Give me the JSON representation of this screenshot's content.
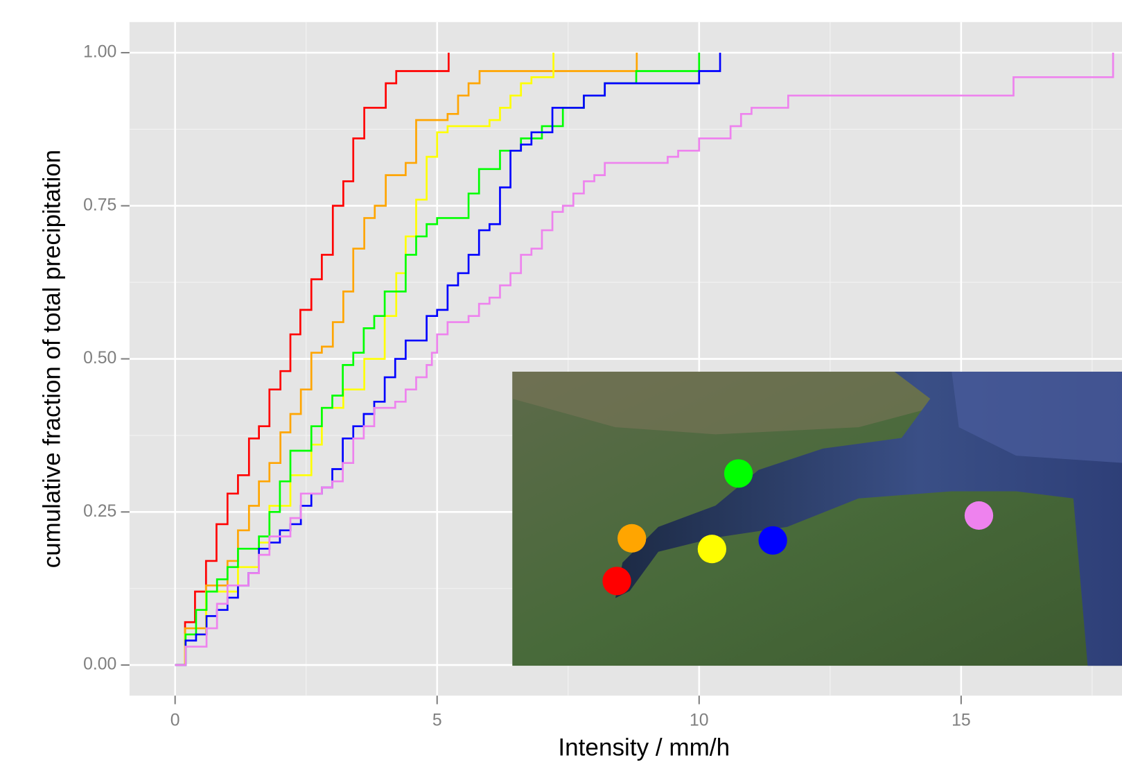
{
  "chart_data": {
    "type": "step",
    "x_label": "Intensity / mm/h",
    "y_label": "cumulative fraction of total precipitation",
    "xlim": [
      -0.87,
      18.07
    ],
    "ylim": [
      -0.05,
      1.05
    ],
    "xticks": [
      0,
      5,
      10,
      15
    ],
    "yticks": [
      {
        "value": 0,
        "label": "0.00"
      },
      0.25,
      {
        "value": 0.5,
        "label": "0.50"
      },
      0.75,
      {
        "value": 1,
        "label": "1.00"
      }
    ],
    "xminor": [
      2.5,
      7.5,
      12.5,
      17.5
    ],
    "yminor": [
      0.125,
      0.375,
      0.625,
      0.875
    ],
    "grid": true,
    "series": [
      {
        "color": "#ff0000",
        "x": [
          0,
          0.19,
          0.38,
          0.59,
          0.79,
          1.0,
          1.2,
          1.41,
          1.6,
          1.8,
          2.01,
          2.2,
          2.39,
          2.6,
          2.8,
          3.01,
          3.21,
          3.4,
          3.61,
          4.02,
          4.22,
          5.22
        ],
        "values": [
          0,
          0.07,
          0.12,
          0.17,
          0.23,
          0.28,
          0.31,
          0.37,
          0.39,
          0.45,
          0.48,
          0.54,
          0.58,
          0.63,
          0.67,
          0.75,
          0.79,
          0.86,
          0.91,
          0.95,
          0.97,
          1.0
        ]
      },
      {
        "color": "#ffa500",
        "x": [
          0,
          0.19,
          0.59,
          1.0,
          1.2,
          1.41,
          1.6,
          1.8,
          2.01,
          2.2,
          2.4,
          2.6,
          2.8,
          3.01,
          3.21,
          3.4,
          3.61,
          3.81,
          4.02,
          4.4,
          4.6,
          5.2,
          5.4,
          5.6,
          5.81,
          8.81
        ],
        "values": [
          0,
          0.06,
          0.13,
          0.17,
          0.22,
          0.26,
          0.3,
          0.33,
          0.38,
          0.41,
          0.45,
          0.51,
          0.52,
          0.56,
          0.61,
          0.68,
          0.73,
          0.75,
          0.8,
          0.82,
          0.89,
          0.9,
          0.93,
          0.95,
          0.97,
          1.0
        ]
      },
      {
        "color": "#ffff00",
        "x": [
          0,
          0.19,
          0.59,
          1.2,
          1.6,
          1.8,
          2.2,
          2.6,
          2.8,
          3.21,
          3.61,
          4.0,
          4.22,
          4.4,
          4.6,
          4.8,
          5.0,
          5.2,
          6.0,
          6.2,
          6.4,
          6.6,
          6.8,
          7.22
        ],
        "values": [
          0,
          0.05,
          0.12,
          0.16,
          0.2,
          0.26,
          0.31,
          0.36,
          0.42,
          0.45,
          0.5,
          0.57,
          0.64,
          0.7,
          0.76,
          0.83,
          0.87,
          0.88,
          0.89,
          0.91,
          0.93,
          0.95,
          0.96,
          1.0
        ]
      },
      {
        "color": "#00ff00",
        "x": [
          0,
          0.2,
          0.4,
          0.6,
          0.8,
          1.0,
          1.2,
          1.6,
          1.8,
          2.0,
          2.2,
          2.6,
          2.8,
          3.0,
          3.2,
          3.4,
          3.6,
          3.8,
          4.0,
          4.4,
          4.6,
          4.8,
          5.0,
          5.6,
          5.8,
          6.2,
          6.6,
          7.0,
          7.4,
          7.8,
          8.2,
          8.8,
          10.0
        ],
        "values": [
          0,
          0.05,
          0.09,
          0.12,
          0.14,
          0.16,
          0.19,
          0.21,
          0.25,
          0.3,
          0.35,
          0.39,
          0.42,
          0.44,
          0.49,
          0.51,
          0.55,
          0.57,
          0.61,
          0.67,
          0.7,
          0.72,
          0.73,
          0.77,
          0.81,
          0.84,
          0.86,
          0.88,
          0.91,
          0.93,
          0.95,
          0.97,
          1.0
        ]
      },
      {
        "color": "#0000ff",
        "x": [
          0,
          0.2,
          0.4,
          0.6,
          0.8,
          1.0,
          1.2,
          1.4,
          1.6,
          1.8,
          2.0,
          2.2,
          2.4,
          2.6,
          2.8,
          3.0,
          3.2,
          3.4,
          3.6,
          3.8,
          4.0,
          4.2,
          4.4,
          4.8,
          5.0,
          5.2,
          5.4,
          5.6,
          5.8,
          6.0,
          6.2,
          6.4,
          6.6,
          6.8,
          7.2,
          7.8,
          8.2,
          10.0,
          10.4
        ],
        "values": [
          0,
          0.04,
          0.05,
          0.08,
          0.09,
          0.11,
          0.13,
          0.15,
          0.19,
          0.2,
          0.22,
          0.23,
          0.26,
          0.28,
          0.29,
          0.32,
          0.37,
          0.39,
          0.41,
          0.43,
          0.47,
          0.5,
          0.53,
          0.57,
          0.58,
          0.62,
          0.64,
          0.67,
          0.71,
          0.72,
          0.78,
          0.84,
          0.85,
          0.87,
          0.91,
          0.93,
          0.95,
          0.97,
          1.0
        ]
      },
      {
        "color": "#ee82ee",
        "x": [
          0,
          0.2,
          0.6,
          0.8,
          1.0,
          1.4,
          1.6,
          1.8,
          2.2,
          2.4,
          2.8,
          3.0,
          3.2,
          3.4,
          3.6,
          3.8,
          4.2,
          4.4,
          4.6,
          4.8,
          4.9,
          5.0,
          5.2,
          5.6,
          5.8,
          6.0,
          6.2,
          6.4,
          6.6,
          6.8,
          7.0,
          7.2,
          7.4,
          7.6,
          7.8,
          8.0,
          8.2,
          9.4,
          9.6,
          10.0,
          10.6,
          10.8,
          11.0,
          11.7,
          16.0,
          17.9
        ],
        "values": [
          0,
          0.03,
          0.06,
          0.1,
          0.13,
          0.15,
          0.18,
          0.21,
          0.24,
          0.28,
          0.29,
          0.3,
          0.33,
          0.37,
          0.39,
          0.42,
          0.43,
          0.45,
          0.47,
          0.49,
          0.51,
          0.54,
          0.56,
          0.57,
          0.59,
          0.6,
          0.62,
          0.64,
          0.67,
          0.68,
          0.71,
          0.74,
          0.75,
          0.77,
          0.79,
          0.8,
          0.82,
          0.83,
          0.84,
          0.86,
          0.88,
          0.9,
          0.91,
          0.93,
          0.96,
          1.0
        ]
      }
    ]
  }
}
